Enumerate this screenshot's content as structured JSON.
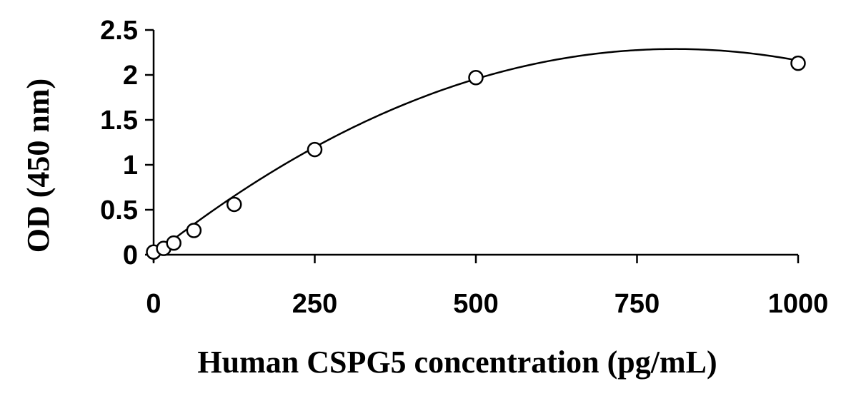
{
  "chart_data": {
    "type": "scatter",
    "title": "",
    "xlabel": "Human CSPG5 concentration (pg/mL)",
    "ylabel": "OD (450 nm)",
    "xlim": [
      0,
      1000
    ],
    "ylim": [
      0,
      2.5
    ],
    "x_ticks": [
      0,
      250,
      500,
      750,
      1000
    ],
    "y_ticks": [
      0,
      0.5,
      1,
      1.5,
      2,
      2.5
    ],
    "x_tick_labels": [
      "0",
      "250",
      "500",
      "750",
      "1000"
    ],
    "y_tick_labels": [
      "0",
      "0.5",
      "1",
      "1.5",
      "2",
      "2.5"
    ],
    "grid": false,
    "legend": "none",
    "series": [
      {
        "marker": "open-circle",
        "color": "#000000",
        "x": [
          0,
          15.6,
          31.25,
          62.5,
          125,
          250,
          500,
          1000
        ],
        "y": [
          0.03,
          0.07,
          0.13,
          0.27,
          0.56,
          1.17,
          1.97,
          2.13
        ]
      }
    ],
    "fit": {
      "type": "polynomial-2",
      "color": "#000000",
      "coefficients": [
        0.0,
        0.00566,
        -3.5e-06
      ]
    }
  }
}
